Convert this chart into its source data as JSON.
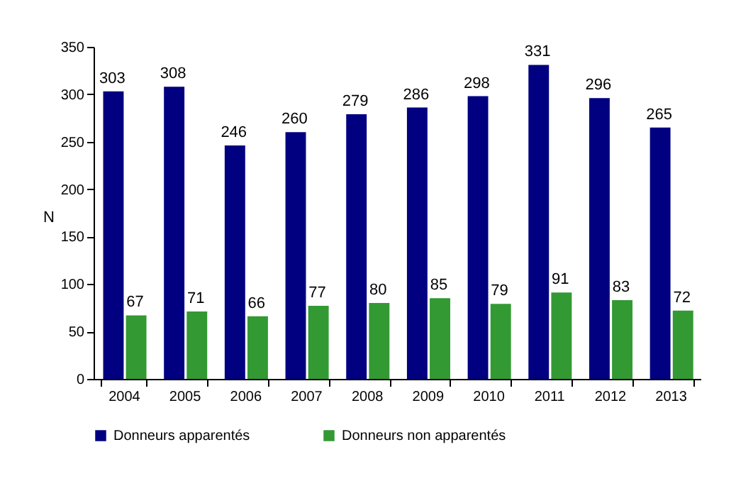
{
  "chart_data": {
    "type": "bar",
    "ylabel": "N",
    "categories": [
      "2004",
      "2005",
      "2006",
      "2007",
      "2008",
      "2009",
      "2010",
      "2011",
      "2012",
      "2013"
    ],
    "series": [
      {
        "name": "Donneurs apparentés",
        "color": "#000080",
        "values": [
          303,
          308,
          246,
          260,
          279,
          286,
          298,
          331,
          296,
          265
        ]
      },
      {
        "name": "Donneurs non apparentés",
        "color": "#339933",
        "values": [
          67,
          71,
          66,
          77,
          80,
          85,
          79,
          91,
          83,
          72
        ]
      }
    ],
    "ylim": [
      0,
      350
    ],
    "yticks": [
      0,
      50,
      100,
      150,
      200,
      250,
      300,
      350
    ],
    "data_labels": true,
    "legend": "bottom",
    "grid": false
  }
}
